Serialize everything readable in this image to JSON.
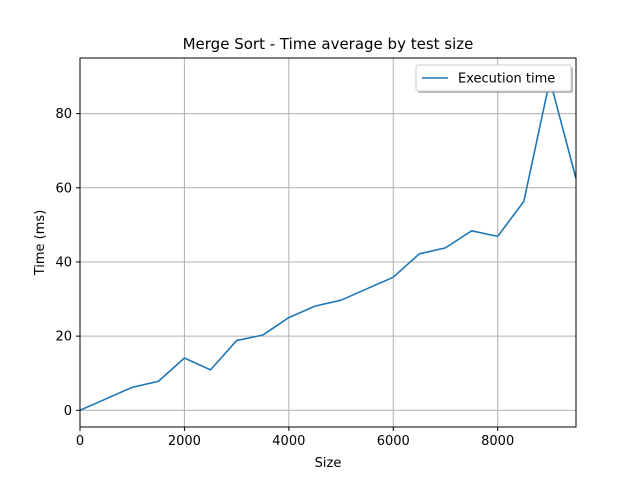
{
  "chart_data": {
    "type": "line",
    "title": "Merge Sort - Time average by test size",
    "xlabel": "Size",
    "ylabel": "Time (ms)",
    "xlim": [
      0,
      9500
    ],
    "ylim": [
      -4.5,
      95
    ],
    "xticks": [
      0,
      2000,
      4000,
      6000,
      8000
    ],
    "yticks": [
      0,
      20,
      40,
      60,
      80
    ],
    "grid": true,
    "legend_position": "top-right",
    "series": [
      {
        "name": "Execution time",
        "color": "#1f77b4",
        "x": [
          0,
          500,
          1000,
          1500,
          2000,
          2500,
          3000,
          3500,
          4000,
          4500,
          5000,
          5500,
          6000,
          6500,
          7000,
          7500,
          8000,
          8500,
          9000,
          9500
        ],
        "y": [
          0,
          3.1,
          6.2,
          7.8,
          14.1,
          10.9,
          18.8,
          20.3,
          25.0,
          28.1,
          29.7,
          32.8,
          35.9,
          42.2,
          43.8,
          48.4,
          46.9,
          56.3,
          89.1,
          62.5
        ]
      }
    ]
  }
}
